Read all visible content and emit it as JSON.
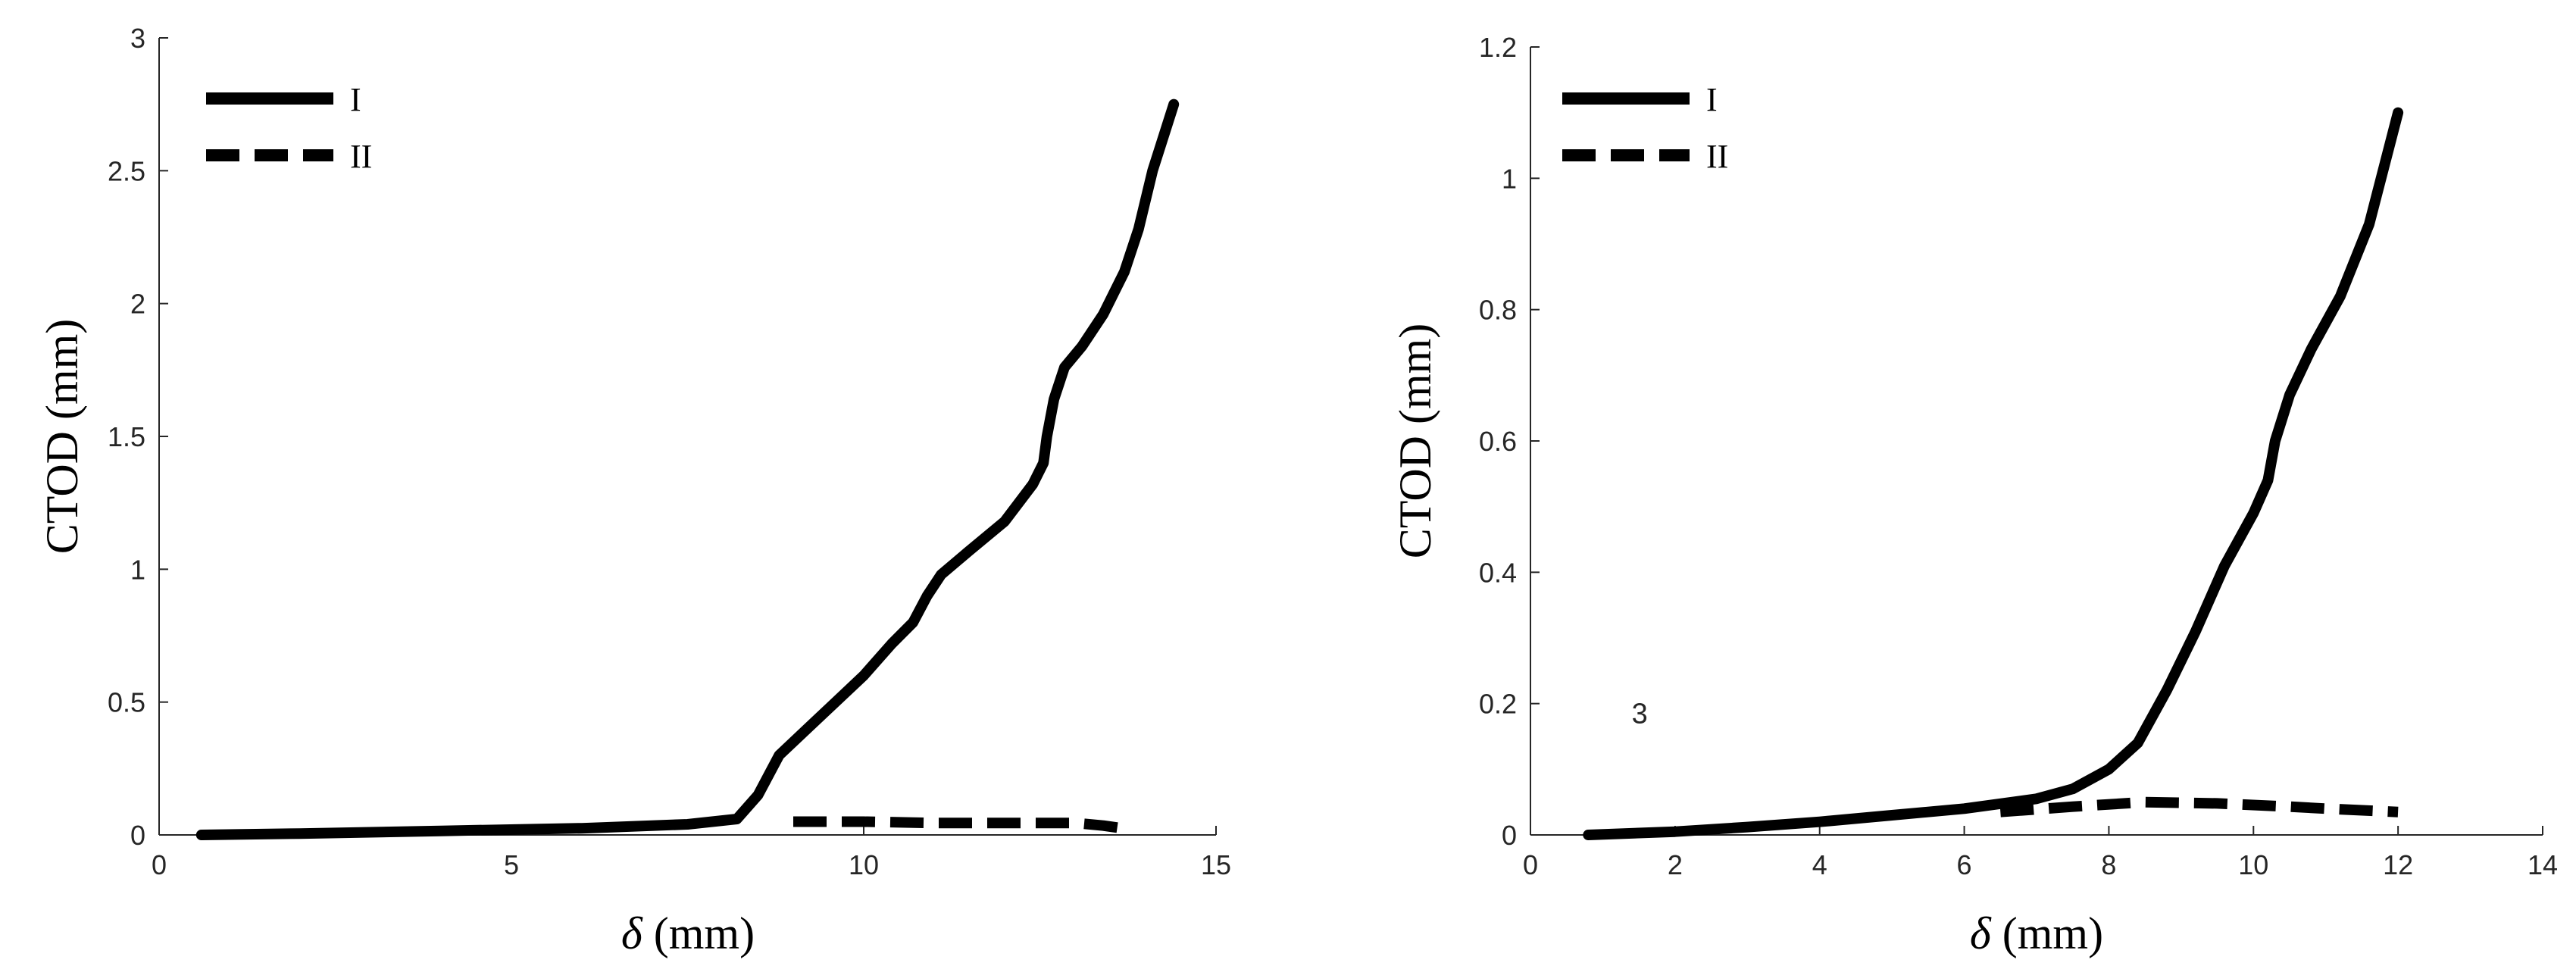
{
  "chart_data": [
    {
      "type": "line",
      "xlabel_symbol": "δ",
      "xlabel_unit": " (mm)",
      "ylabel": "CTOD (mm)",
      "xlim": [
        0,
        15
      ],
      "ylim": [
        0,
        3
      ],
      "xticks": [
        0,
        5,
        10,
        15
      ],
      "yticks": [
        0,
        0.5,
        1,
        1.5,
        2,
        2.5,
        3
      ],
      "xtick_labels": [
        "0",
        "5",
        "10",
        "15"
      ],
      "ytick_labels": [
        "0",
        "0.5",
        "1",
        "1.5",
        "2",
        "2.5",
        "3"
      ],
      "legend_position": "top-left",
      "series": [
        {
          "name": "I",
          "style": "solid",
          "color": "#000000",
          "x": [
            0.6,
            2,
            4,
            6,
            7.5,
            8.2,
            8.5,
            8.8,
            9.2,
            9.6,
            10,
            10.4,
            10.7,
            10.9,
            11.1,
            11.5,
            12,
            12.4,
            12.55,
            12.6,
            12.7,
            12.85,
            13.1,
            13.4,
            13.7,
            13.9,
            14.1,
            14.4
          ],
          "y": [
            0.0,
            0.005,
            0.015,
            0.025,
            0.04,
            0.06,
            0.15,
            0.3,
            0.4,
            0.5,
            0.6,
            0.72,
            0.8,
            0.9,
            0.98,
            1.07,
            1.18,
            1.32,
            1.4,
            1.5,
            1.64,
            1.76,
            1.84,
            1.96,
            2.12,
            2.28,
            2.5,
            2.75
          ]
        },
        {
          "name": "II",
          "style": "dashed",
          "color": "#000000",
          "x": [
            9,
            10,
            11,
            12,
            13,
            13.4,
            13.8
          ],
          "y": [
            0.05,
            0.05,
            0.045,
            0.045,
            0.045,
            0.035,
            0.02
          ]
        }
      ]
    },
    {
      "type": "line",
      "xlabel_symbol": "δ",
      "xlabel_unit": " (mm)",
      "ylabel": "CTOD (mm)",
      "xlim": [
        0,
        14
      ],
      "ylim": [
        0,
        1.2
      ],
      "xticks": [
        0,
        2,
        4,
        6,
        8,
        10,
        12,
        14
      ],
      "yticks": [
        0,
        0.2,
        0.4,
        0.6,
        0.8,
        1,
        1.2
      ],
      "xtick_labels": [
        "0",
        "2",
        "4",
        "6",
        "8",
        "10",
        "12",
        "14"
      ],
      "ytick_labels": [
        "0",
        "0.2",
        "0.4",
        "0.6",
        "0.8",
        "1",
        "1.2"
      ],
      "legend_position": "top-left",
      "annotation": {
        "text": "3",
        "x": 1.4,
        "y": 0.17
      },
      "series": [
        {
          "name": "I",
          "style": "solid",
          "color": "#000000",
          "x": [
            0.8,
            2,
            3,
            4,
            5,
            6,
            7,
            7.5,
            8,
            8.4,
            8.8,
            9.2,
            9.6,
            10,
            10.2,
            10.3,
            10.5,
            10.8,
            11.2,
            11.6,
            12
          ],
          "y": [
            0.0,
            0.005,
            0.012,
            0.02,
            0.03,
            0.04,
            0.055,
            0.07,
            0.1,
            0.14,
            0.22,
            0.31,
            0.41,
            0.49,
            0.54,
            0.6,
            0.67,
            0.74,
            0.82,
            0.93,
            1.1
          ]
        },
        {
          "name": "II",
          "style": "dashed",
          "color": "#000000",
          "x": [
            6.5,
            7.5,
            8.5,
            9.5,
            10.5,
            11,
            12
          ],
          "y": [
            0.035,
            0.043,
            0.05,
            0.048,
            0.043,
            0.04,
            0.035
          ]
        }
      ]
    }
  ]
}
